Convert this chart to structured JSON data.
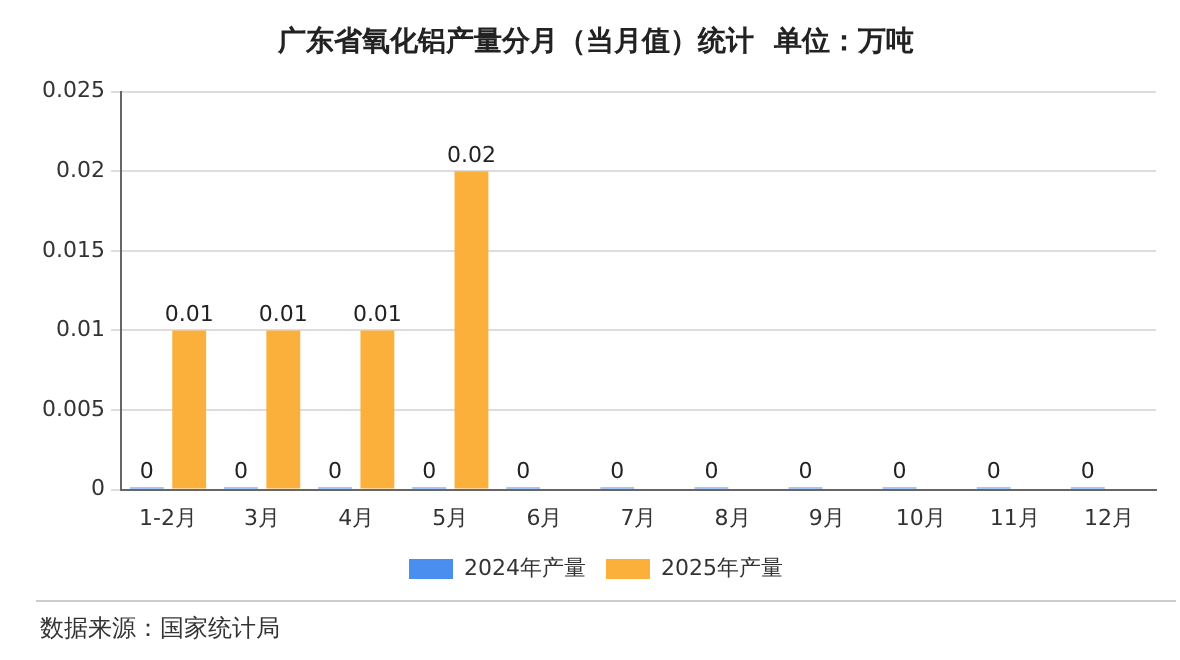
{
  "chart_data": {
    "type": "bar",
    "title": "广东省氧化铝产量分月（当月值）统计  单位：万吨",
    "categories": [
      "1-2月",
      "3月",
      "4月",
      "5月",
      "6月",
      "7月",
      "8月",
      "9月",
      "10月",
      "11月",
      "12月"
    ],
    "series": [
      {
        "name": "2024年产量",
        "color": "#4a8ff0",
        "values": [
          0,
          0,
          0,
          0,
          0,
          0,
          0,
          0,
          0,
          0,
          0
        ]
      },
      {
        "name": "2025年产量",
        "color": "#fbb03b",
        "values": [
          0.01,
          0.01,
          0.01,
          0.02,
          null,
          null,
          null,
          null,
          null,
          null,
          null
        ]
      }
    ],
    "ylim": [
      0,
      0.025
    ],
    "yticks": [
      0,
      0.005,
      0.01,
      0.015,
      0.02,
      0.025
    ],
    "grid": "y",
    "legend": "bottom",
    "data_labels": true,
    "annotations": [
      "数据来源：国家统计局"
    ]
  }
}
